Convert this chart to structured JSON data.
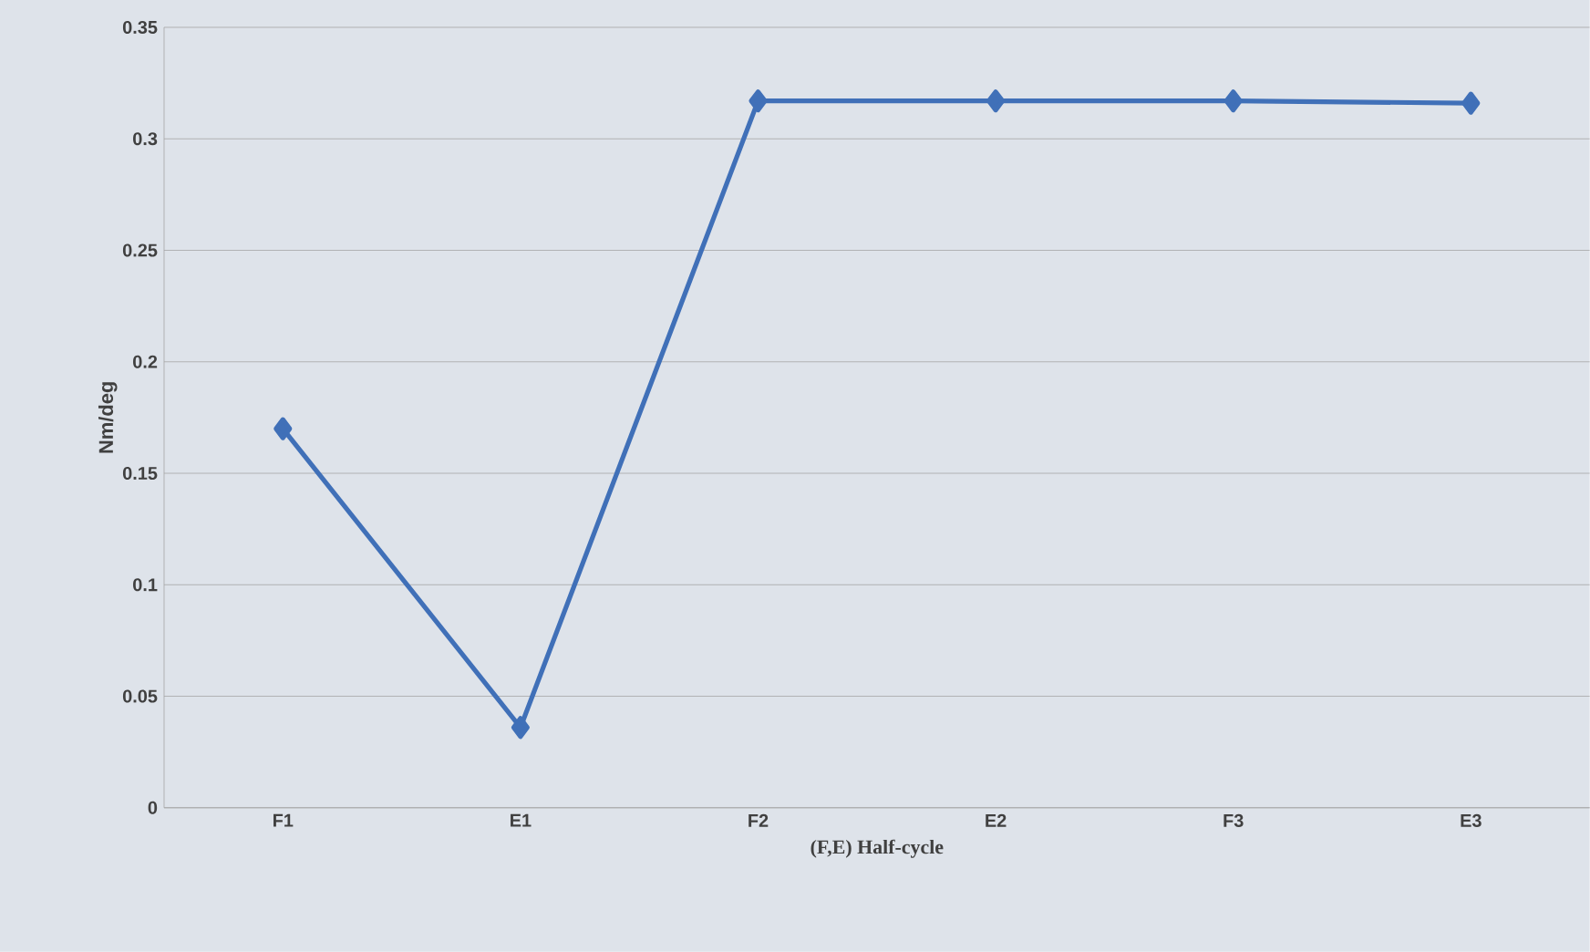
{
  "chart_data": {
    "type": "line",
    "xlabel": "(F,E) Half-cycle",
    "ylabel": "Nm/deg",
    "categories": [
      "F1",
      "E1",
      "F2",
      "E2",
      "F3",
      "E3"
    ],
    "series": [
      {
        "color": "#4070b8",
        "values": [
          0.17,
          0.036,
          0.317,
          0.317,
          0.317,
          0.316
        ]
      }
    ],
    "ylim": [
      0,
      0.35
    ],
    "yticks": [
      0,
      0.05,
      0.1,
      0.15,
      0.2,
      0.25,
      0.3,
      0.35
    ],
    "grid": "y",
    "marker": "diamond",
    "line_style": "solid"
  }
}
